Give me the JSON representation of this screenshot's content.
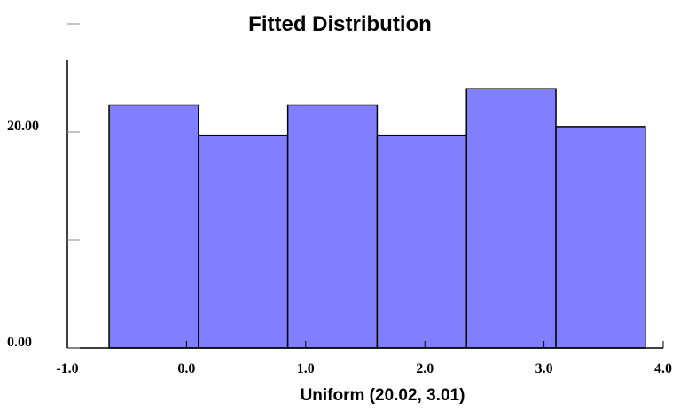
{
  "chart_data": {
    "type": "bar",
    "title": "Fitted Distribution",
    "xlabel": "Uniform (20.02, 3.01)",
    "ylabel": "",
    "x_ticks": [
      "-1.0",
      "0.0",
      "1.0",
      "2.0",
      "3.0",
      "4.0"
    ],
    "x_tick_values": [
      -1.0,
      0.0,
      1.0,
      2.0,
      3.0,
      4.0
    ],
    "y_ticks": [
      "0.00",
      "20.00"
    ],
    "y_tick_values": [
      0,
      20
    ],
    "xlim": [
      -1.0,
      4.0
    ],
    "ylim": [
      0,
      30
    ],
    "bins": [
      {
        "x0": -0.65,
        "x1": 0.1,
        "value": 22.5
      },
      {
        "x0": 0.1,
        "x1": 0.85,
        "value": 19.7
      },
      {
        "x0": 0.85,
        "x1": 1.6,
        "value": 22.5
      },
      {
        "x0": 1.6,
        "x1": 2.35,
        "value": 19.7
      },
      {
        "x0": 2.35,
        "x1": 3.1,
        "value": 24.0
      },
      {
        "x0": 3.1,
        "x1": 3.85,
        "value": 20.5
      }
    ],
    "bar_color": "#8080ff",
    "grid": false
  }
}
